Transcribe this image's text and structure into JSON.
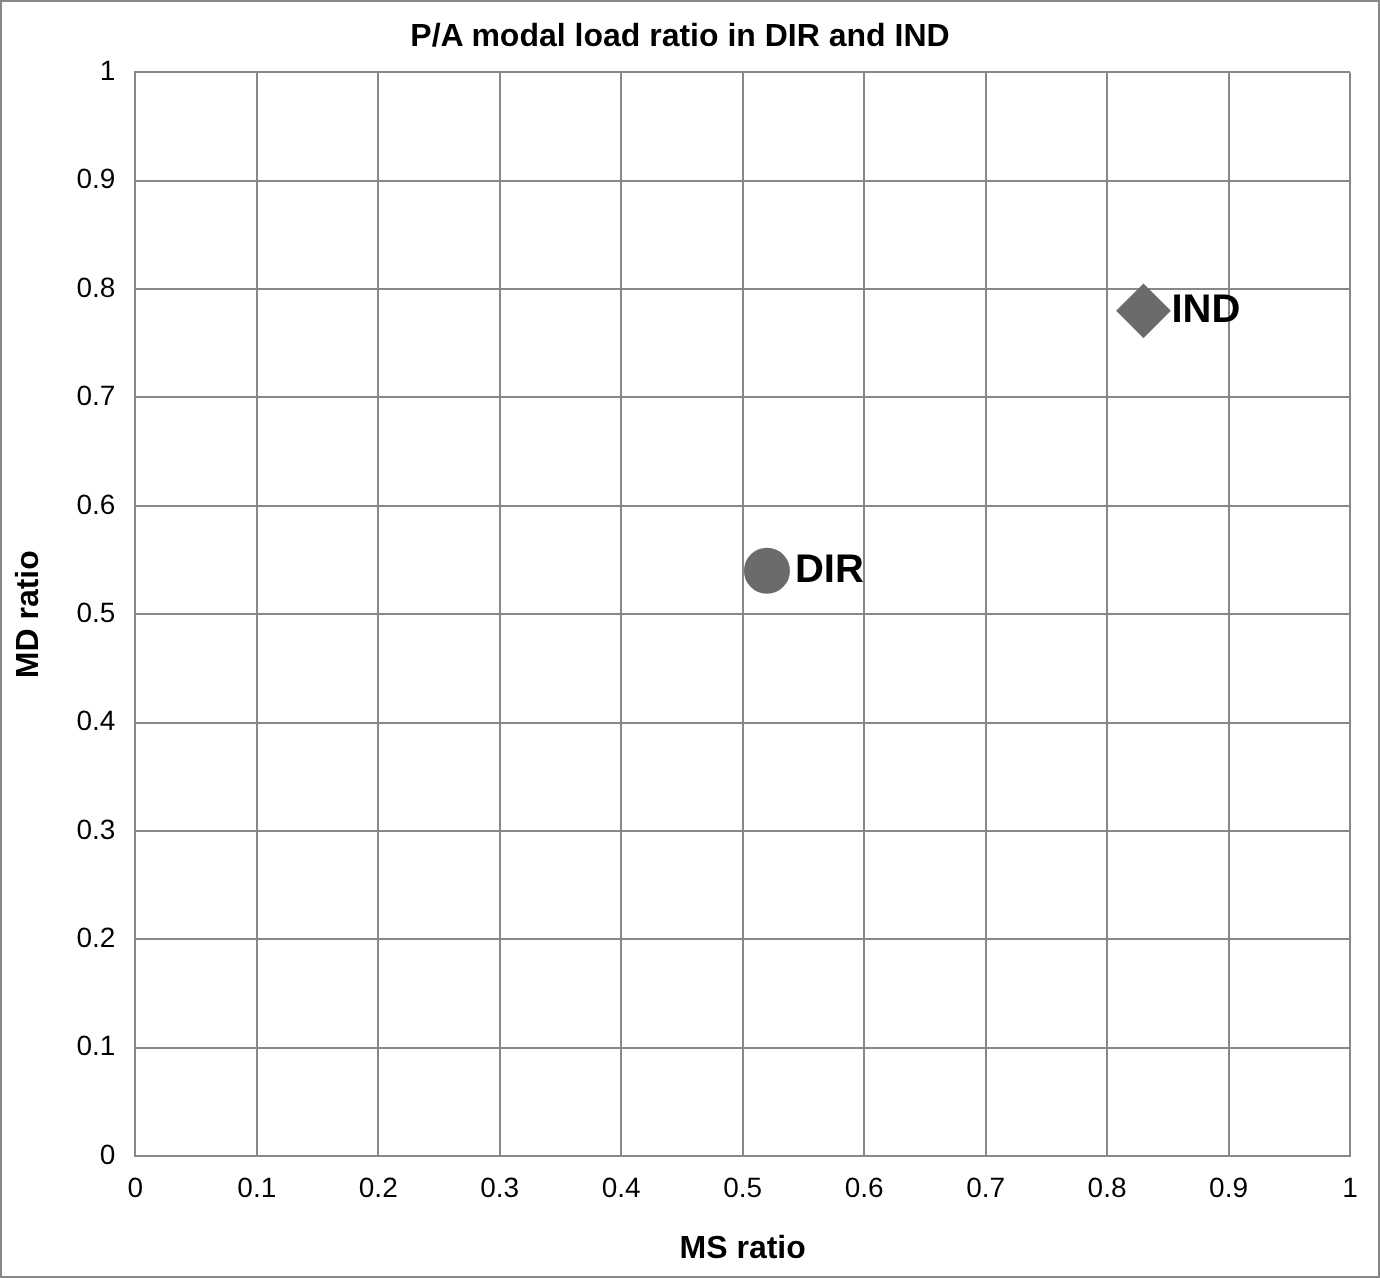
{
  "chart_data": {
    "type": "scatter",
    "title": "P/A modal load ratio in DIR and IND",
    "xlabel": "MS ratio",
    "ylabel": "MD ratio",
    "xlim": [
      0,
      1
    ],
    "xticks": [
      0,
      0.1,
      0.2,
      0.3,
      0.4,
      0.5,
      0.6,
      0.7,
      0.8,
      0.9,
      1
    ],
    "ylim": [
      0,
      1
    ],
    "yticks": [
      0,
      0.1,
      0.2,
      0.3,
      0.4,
      0.5,
      0.6,
      0.7,
      0.8,
      0.9,
      1
    ],
    "grid": true,
    "legend": false,
    "series": [
      {
        "name": "DIR",
        "color": "#6b6b6b",
        "marker": "circle",
        "x": [
          0.52
        ],
        "values": [
          0.54
        ]
      },
      {
        "name": "IND",
        "color": "#6b6b6b",
        "marker": "diamond",
        "x": [
          0.83
        ],
        "values": [
          0.78
        ]
      }
    ]
  }
}
